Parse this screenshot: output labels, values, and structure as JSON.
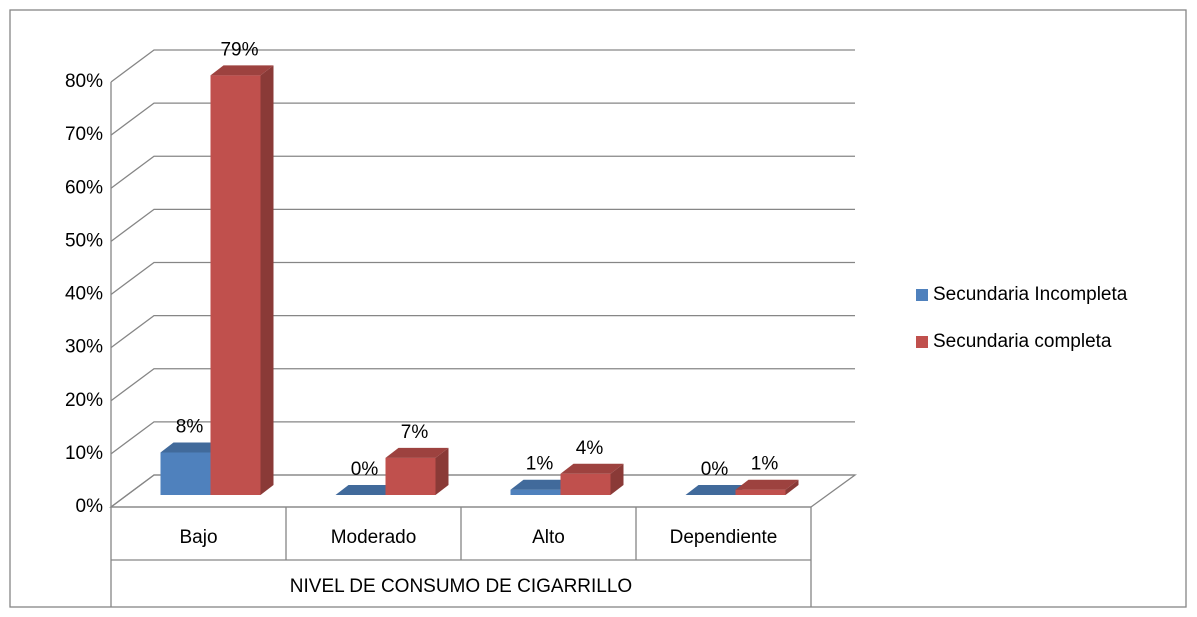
{
  "chart_data": {
    "type": "bar3d",
    "x_label": "NIVEL DE CONSUMO DE CIGARRILLO",
    "categories": [
      "Bajo",
      "Moderado",
      "Alto",
      "Dependiente"
    ],
    "series": [
      {
        "name": "Secundaria Incompleta",
        "color": "#4f81bd",
        "values": [
          8,
          0,
          1,
          0
        ],
        "value_labels": [
          "8%",
          "0%",
          "1%",
          "0%"
        ]
      },
      {
        "name": "Secundaria completa",
        "color": "#c0504d",
        "values": [
          79,
          7,
          4,
          1
        ],
        "value_labels": [
          "79%",
          "7%",
          "4%",
          "1%"
        ]
      }
    ],
    "ylim": [
      0,
      80
    ],
    "yticks": [
      {
        "value": 0,
        "label": "0%"
      },
      {
        "value": 10,
        "label": "10%"
      },
      {
        "value": 20,
        "label": "20%"
      },
      {
        "value": 30,
        "label": "30%"
      },
      {
        "value": 40,
        "label": "40%"
      },
      {
        "value": 50,
        "label": "50%"
      },
      {
        "value": 60,
        "label": "60%"
      },
      {
        "value": 70,
        "label": "70%"
      },
      {
        "value": 80,
        "label": "80%"
      }
    ],
    "grid": true,
    "legend": "right"
  }
}
